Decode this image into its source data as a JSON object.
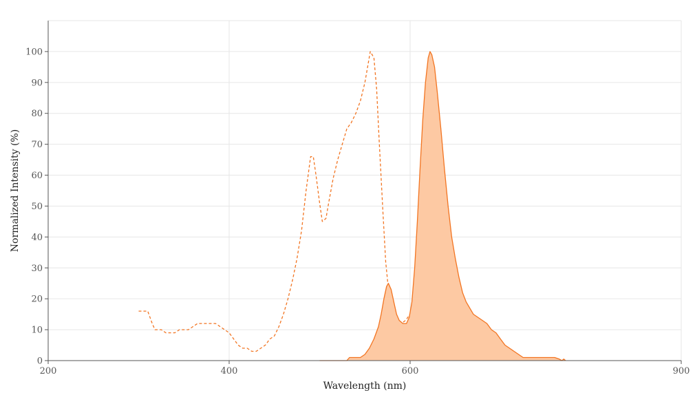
{
  "chart_data": {
    "type": "area",
    "xlabel": "Wavelength (nm)",
    "ylabel": "Normalized Intensity (%)",
    "xlim": [
      200,
      900
    ],
    "ylim": [
      0,
      110
    ],
    "x_ticks": [
      200,
      400,
      600,
      900
    ],
    "y_ticks": [
      0,
      10,
      20,
      30,
      40,
      50,
      60,
      70,
      80,
      90,
      100
    ],
    "grid": true,
    "legend": "none",
    "colors": {
      "line": "#f27421",
      "fill": "#fdc9a3",
      "grid": "#e6e6e6",
      "axis": "#555555"
    },
    "series": [
      {
        "style": "dashed",
        "filled": false,
        "points": [
          [
            300,
            16
          ],
          [
            310,
            16
          ],
          [
            315,
            12
          ],
          [
            318,
            10
          ],
          [
            325,
            10
          ],
          [
            330,
            9
          ],
          [
            340,
            9
          ],
          [
            345,
            10
          ],
          [
            355,
            10
          ],
          [
            360,
            11
          ],
          [
            365,
            12
          ],
          [
            375,
            12
          ],
          [
            385,
            12
          ],
          [
            390,
            11
          ],
          [
            395,
            10
          ],
          [
            400,
            9
          ],
          [
            405,
            7
          ],
          [
            410,
            5
          ],
          [
            415,
            4
          ],
          [
            420,
            4
          ],
          [
            425,
            3
          ],
          [
            430,
            3
          ],
          [
            435,
            4
          ],
          [
            440,
            5
          ],
          [
            445,
            7
          ],
          [
            450,
            8
          ],
          [
            455,
            11
          ],
          [
            460,
            15
          ],
          [
            465,
            20
          ],
          [
            470,
            26
          ],
          [
            475,
            33
          ],
          [
            480,
            42
          ],
          [
            485,
            55
          ],
          [
            490,
            66
          ],
          [
            493,
            66
          ],
          [
            496,
            60
          ],
          [
            500,
            51
          ],
          [
            503,
            45
          ],
          [
            507,
            46
          ],
          [
            510,
            51
          ],
          [
            515,
            59
          ],
          [
            520,
            65
          ],
          [
            525,
            70
          ],
          [
            530,
            75
          ],
          [
            535,
            77
          ],
          [
            540,
            80
          ],
          [
            545,
            84
          ],
          [
            550,
            90
          ],
          [
            553,
            95
          ],
          [
            556,
            100
          ],
          [
            560,
            98
          ],
          [
            563,
            88
          ],
          [
            566,
            70
          ],
          [
            570,
            48
          ],
          [
            573,
            32
          ],
          [
            577,
            20
          ],
          [
            581,
            14
          ],
          [
            585,
            12
          ],
          [
            590,
            12
          ],
          [
            595,
            13
          ],
          [
            600,
            15
          ],
          [
            605,
            17
          ],
          [
            610,
            16
          ],
          [
            615,
            14
          ],
          [
            620,
            11
          ],
          [
            625,
            8
          ],
          [
            630,
            5
          ],
          [
            635,
            3
          ],
          [
            640,
            2
          ],
          [
            645,
            1.5
          ],
          [
            650,
            1
          ],
          [
            660,
            1
          ],
          [
            670,
            1
          ],
          [
            675,
            0
          ]
        ]
      },
      {
        "style": "solid",
        "filled": true,
        "points": [
          [
            500,
            0
          ],
          [
            530,
            0
          ],
          [
            533,
            1
          ],
          [
            545,
            1
          ],
          [
            550,
            2
          ],
          [
            555,
            4
          ],
          [
            560,
            7
          ],
          [
            565,
            11
          ],
          [
            568,
            15
          ],
          [
            571,
            20
          ],
          [
            574,
            24
          ],
          [
            576,
            25
          ],
          [
            579,
            23
          ],
          [
            582,
            19
          ],
          [
            585,
            15
          ],
          [
            588,
            13
          ],
          [
            592,
            12
          ],
          [
            596,
            12
          ],
          [
            599,
            14
          ],
          [
            602,
            19
          ],
          [
            605,
            30
          ],
          [
            608,
            45
          ],
          [
            611,
            62
          ],
          [
            614,
            78
          ],
          [
            617,
            90
          ],
          [
            620,
            98
          ],
          [
            622,
            100
          ],
          [
            624,
            99
          ],
          [
            627,
            95
          ],
          [
            630,
            87
          ],
          [
            634,
            75
          ],
          [
            638,
            62
          ],
          [
            642,
            50
          ],
          [
            646,
            40
          ],
          [
            650,
            33
          ],
          [
            654,
            27
          ],
          [
            658,
            22
          ],
          [
            662,
            19
          ],
          [
            666,
            17
          ],
          [
            670,
            15
          ],
          [
            675,
            14
          ],
          [
            680,
            13
          ],
          [
            685,
            12
          ],
          [
            690,
            10
          ],
          [
            695,
            9
          ],
          [
            700,
            7
          ],
          [
            705,
            5
          ],
          [
            710,
            4
          ],
          [
            715,
            3
          ],
          [
            720,
            2
          ],
          [
            725,
            1
          ],
          [
            730,
            1
          ],
          [
            740,
            1
          ],
          [
            750,
            1
          ],
          [
            760,
            1
          ],
          [
            765,
            0.5
          ],
          [
            768,
            0
          ],
          [
            770,
            0.5
          ],
          [
            772,
            0
          ]
        ]
      }
    ]
  }
}
